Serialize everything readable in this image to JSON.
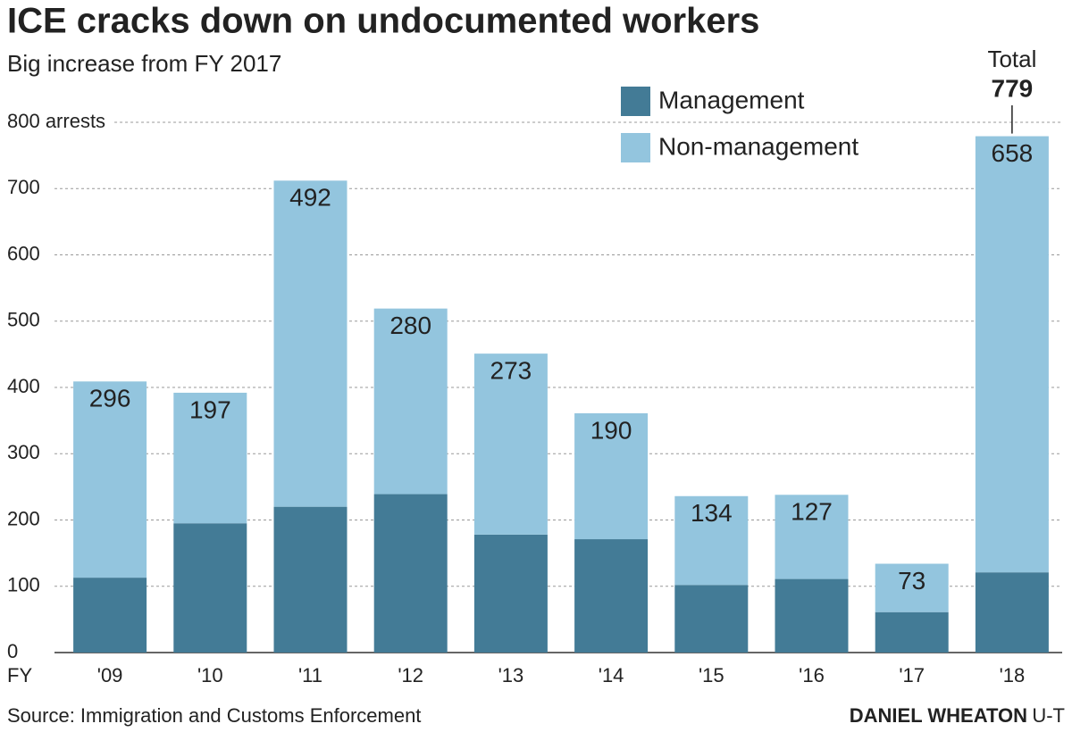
{
  "chart_data": {
    "type": "stacked_bar",
    "title": "ICE cracks down on undocumented workers",
    "subtitle": "Big increase from FY 2017",
    "x_label": "FY",
    "categories": [
      "'09",
      "'10",
      "'11",
      "'12",
      "'13",
      "'14",
      "'15",
      "'16",
      "'17",
      "'18"
    ],
    "series": [
      {
        "name": "Management",
        "color": "#437b96",
        "values": [
          113,
          195,
          220,
          239,
          178,
          171,
          102,
          111,
          61,
          121
        ]
      },
      {
        "name": "Non-management",
        "color": "#93c5de",
        "values": [
          296,
          197,
          492,
          280,
          273,
          190,
          134,
          127,
          73,
          658
        ],
        "show_labels": true
      }
    ],
    "ylim": [
      0,
      800
    ],
    "yticks": [
      0,
      100,
      200,
      300,
      400,
      500,
      600,
      700,
      {
        "value": 800,
        "label": "800 arrests"
      }
    ],
    "grid": true,
    "annotation": {
      "label": "Total",
      "value": 779,
      "category_index": 9
    },
    "source": "Source: Immigration and Customs Enforcement",
    "credit": "DANIEL WHEATON",
    "credit_org": "U-T"
  }
}
